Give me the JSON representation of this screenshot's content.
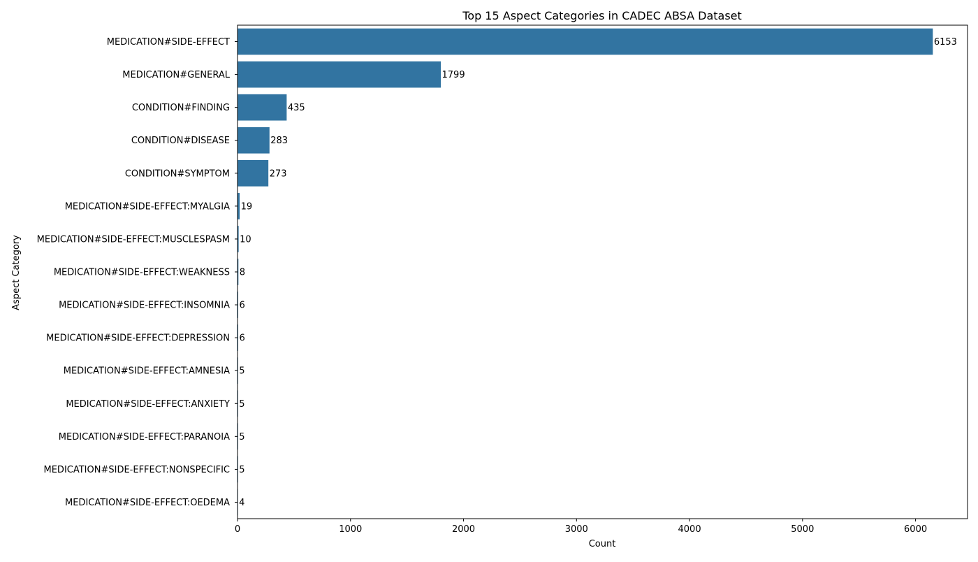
{
  "chart_data": {
    "type": "bar",
    "orientation": "horizontal",
    "title": "Top 15 Aspect Categories in CADEC ABSA Dataset",
    "xlabel": "Count",
    "ylabel": "Aspect Category",
    "categories": [
      "MEDICATION#SIDE-EFFECT",
      "MEDICATION#GENERAL",
      "CONDITION#FINDING",
      "CONDITION#DISEASE",
      "CONDITION#SYMPTOM",
      "MEDICATION#SIDE-EFFECT:MYALGIA",
      "MEDICATION#SIDE-EFFECT:MUSCLESPASM",
      "MEDICATION#SIDE-EFFECT:WEAKNESS",
      "MEDICATION#SIDE-EFFECT:INSOMNIA",
      "MEDICATION#SIDE-EFFECT:DEPRESSION",
      "MEDICATION#SIDE-EFFECT:AMNESIA",
      "MEDICATION#SIDE-EFFECT:ANXIETY",
      "MEDICATION#SIDE-EFFECT:PARANOIA",
      "MEDICATION#SIDE-EFFECT:NONSPECIFIC",
      "MEDICATION#SIDE-EFFECT:OEDEMA"
    ],
    "values": [
      6153,
      1799,
      435,
      283,
      273,
      19,
      10,
      8,
      6,
      6,
      5,
      5,
      5,
      5,
      4
    ],
    "xlim": [
      0,
      6460
    ],
    "xticks": [
      0,
      1000,
      2000,
      3000,
      4000,
      5000,
      6000
    ],
    "grid": false,
    "legend": "none",
    "bar_color": "#3274a1",
    "data_labels": true
  }
}
